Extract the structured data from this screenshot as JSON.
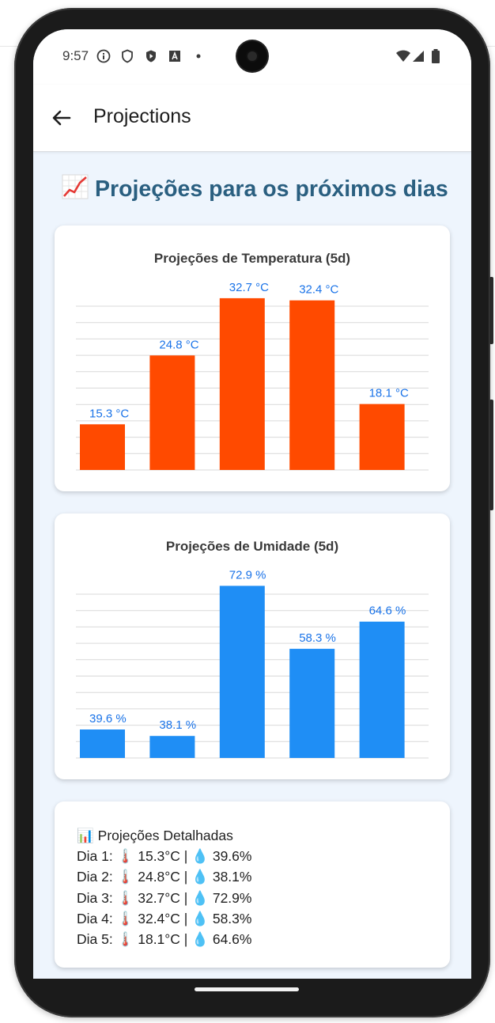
{
  "status": {
    "time": "9:57"
  },
  "appbar": {
    "title": "Projections"
  },
  "heading": {
    "emoji": "📈",
    "text": "Projeções para os próximos dias"
  },
  "colors": {
    "temp_bar": "#ff4a00",
    "hum_bar": "#1f8ef5",
    "label": "#1a73e8",
    "heading": "#2a5f80"
  },
  "chart_data": [
    {
      "type": "bar",
      "title": "Projeções de Temperatura (5d)",
      "categories": [
        "",
        "",
        "",
        "",
        ""
      ],
      "values": [
        15.3,
        24.8,
        32.7,
        32.4,
        18.1
      ],
      "value_labels": [
        "15.3  °C",
        "24.8  °C",
        "32.7  °C",
        "32.4  °C",
        "18.1  °C"
      ],
      "ylim": [
        9,
        34
      ],
      "grid": true
    },
    {
      "type": "bar",
      "title": "Projeções de Umidade (5d)",
      "categories": [
        "",
        "",
        "",
        "",
        ""
      ],
      "values": [
        39.6,
        38.1,
        72.9,
        58.3,
        64.6
      ],
      "value_labels": [
        "39.6  %",
        "38.1  %",
        "72.9  %",
        "58.3  %",
        "64.6  %"
      ],
      "ylim": [
        33,
        75
      ],
      "grid": true
    }
  ],
  "details": {
    "title": "📊 Projeções Detalhadas",
    "rows": [
      "Dia 1:  🌡️ 15.3°C | 💧 39.6%",
      "Dia 2:  🌡️ 24.8°C | 💧 38.1%",
      "Dia 3:  🌡️ 32.7°C | 💧 72.9%",
      "Dia 4:  🌡️ 32.4°C | 💧 58.3%",
      "Dia 5:  🌡️ 18.1°C | 💧 64.6%"
    ]
  }
}
